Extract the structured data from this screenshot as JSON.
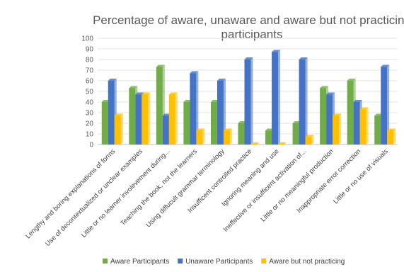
{
  "chart_data": {
    "type": "bar",
    "title_lines": [
      "Percentage of aware, unaware and aware but not practicing",
      "participants"
    ],
    "xlabel": "",
    "ylabel": "",
    "ylim": [
      0,
      100
    ],
    "yticks": [
      0,
      10,
      20,
      30,
      40,
      50,
      60,
      70,
      80,
      90,
      100
    ],
    "grid": true,
    "legend_position": "bottom",
    "categories": [
      "Lengthy and boring explanations of forms",
      "Use of decontextualized or unclear examples",
      "Little or no learner involevement during...",
      "Teaching the book, not the learners",
      "Using diffucult grammar terminology",
      "Insufficent controlled practice",
      "Ignoring meaning and use",
      "Ineffective or insufficent activation of...",
      "Little or no meaningful production",
      "Inappropriate error correction",
      "Little or no use of visuals"
    ],
    "series": [
      {
        "name": "Aware Participants",
        "color": "#70AD47",
        "values": [
          40,
          53,
          73,
          40,
          40,
          20,
          13,
          20,
          53,
          60,
          27
        ]
      },
      {
        "name": "Unaware Participants",
        "color": "#4472C4",
        "values": [
          60,
          47,
          27,
          67,
          60,
          80,
          87,
          80,
          47,
          40,
          73
        ]
      },
      {
        "name": "Aware but not practicing",
        "color": "#FFC000",
        "values": [
          27,
          47,
          47,
          13,
          13,
          0,
          0,
          7,
          27,
          33,
          13
        ]
      }
    ]
  }
}
